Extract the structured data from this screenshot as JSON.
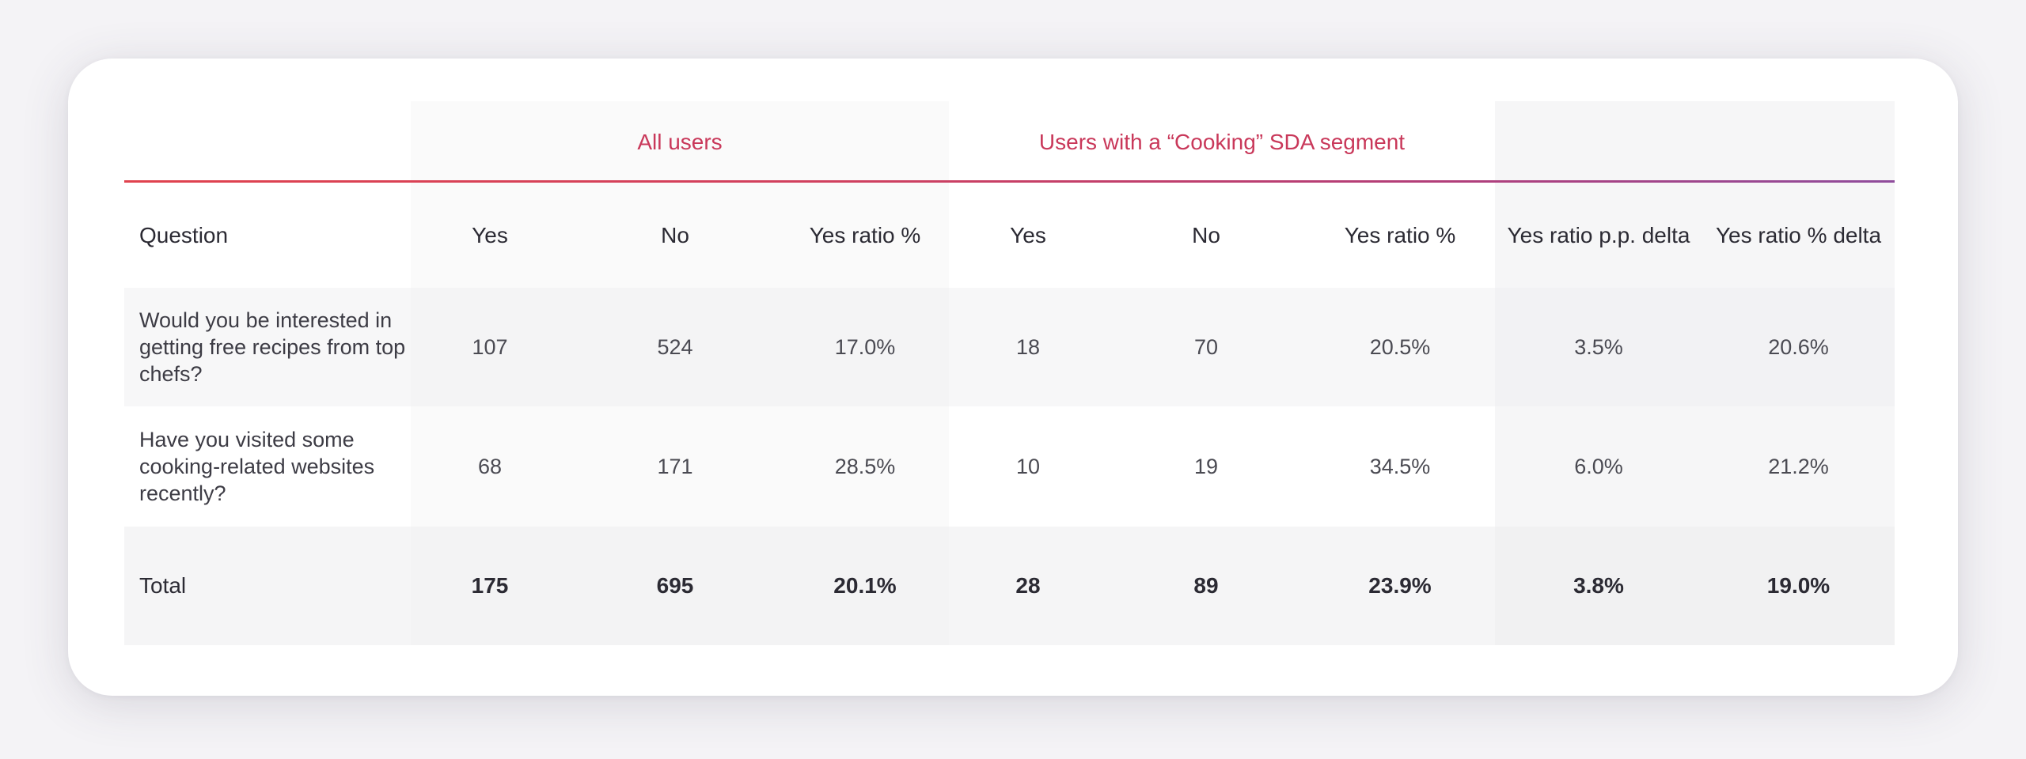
{
  "groups": {
    "all_users": "All users",
    "cooking_users": "Users with a “Cooking” SDA segment"
  },
  "columns": [
    "Question",
    "Yes",
    "No",
    "Yes ratio %",
    "Yes",
    "No",
    "Yes ratio %",
    "Yes ratio p.p. delta",
    "Yes ratio % delta"
  ],
  "rows": [
    {
      "question": "Would you be interested in getting free recipes from top chefs?",
      "cells": [
        "107",
        "524",
        "17.0%",
        "18",
        "70",
        "20.5%",
        "3.5%",
        "20.6%"
      ]
    },
    {
      "question": "Have you visited some cooking-related websites recently?",
      "cells": [
        "68",
        "171",
        "28.5%",
        "10",
        "19",
        "34.5%",
        "6.0%",
        "21.2%"
      ]
    }
  ],
  "total": {
    "label": "Total",
    "cells": [
      "175",
      "695",
      "20.1%",
      "28",
      "89",
      "23.9%",
      "3.8%",
      "19.0%"
    ]
  },
  "colors": {
    "accent_start": "#e0424e",
    "accent_end": "#8f4c9c",
    "group_label": "#c9385a"
  }
}
